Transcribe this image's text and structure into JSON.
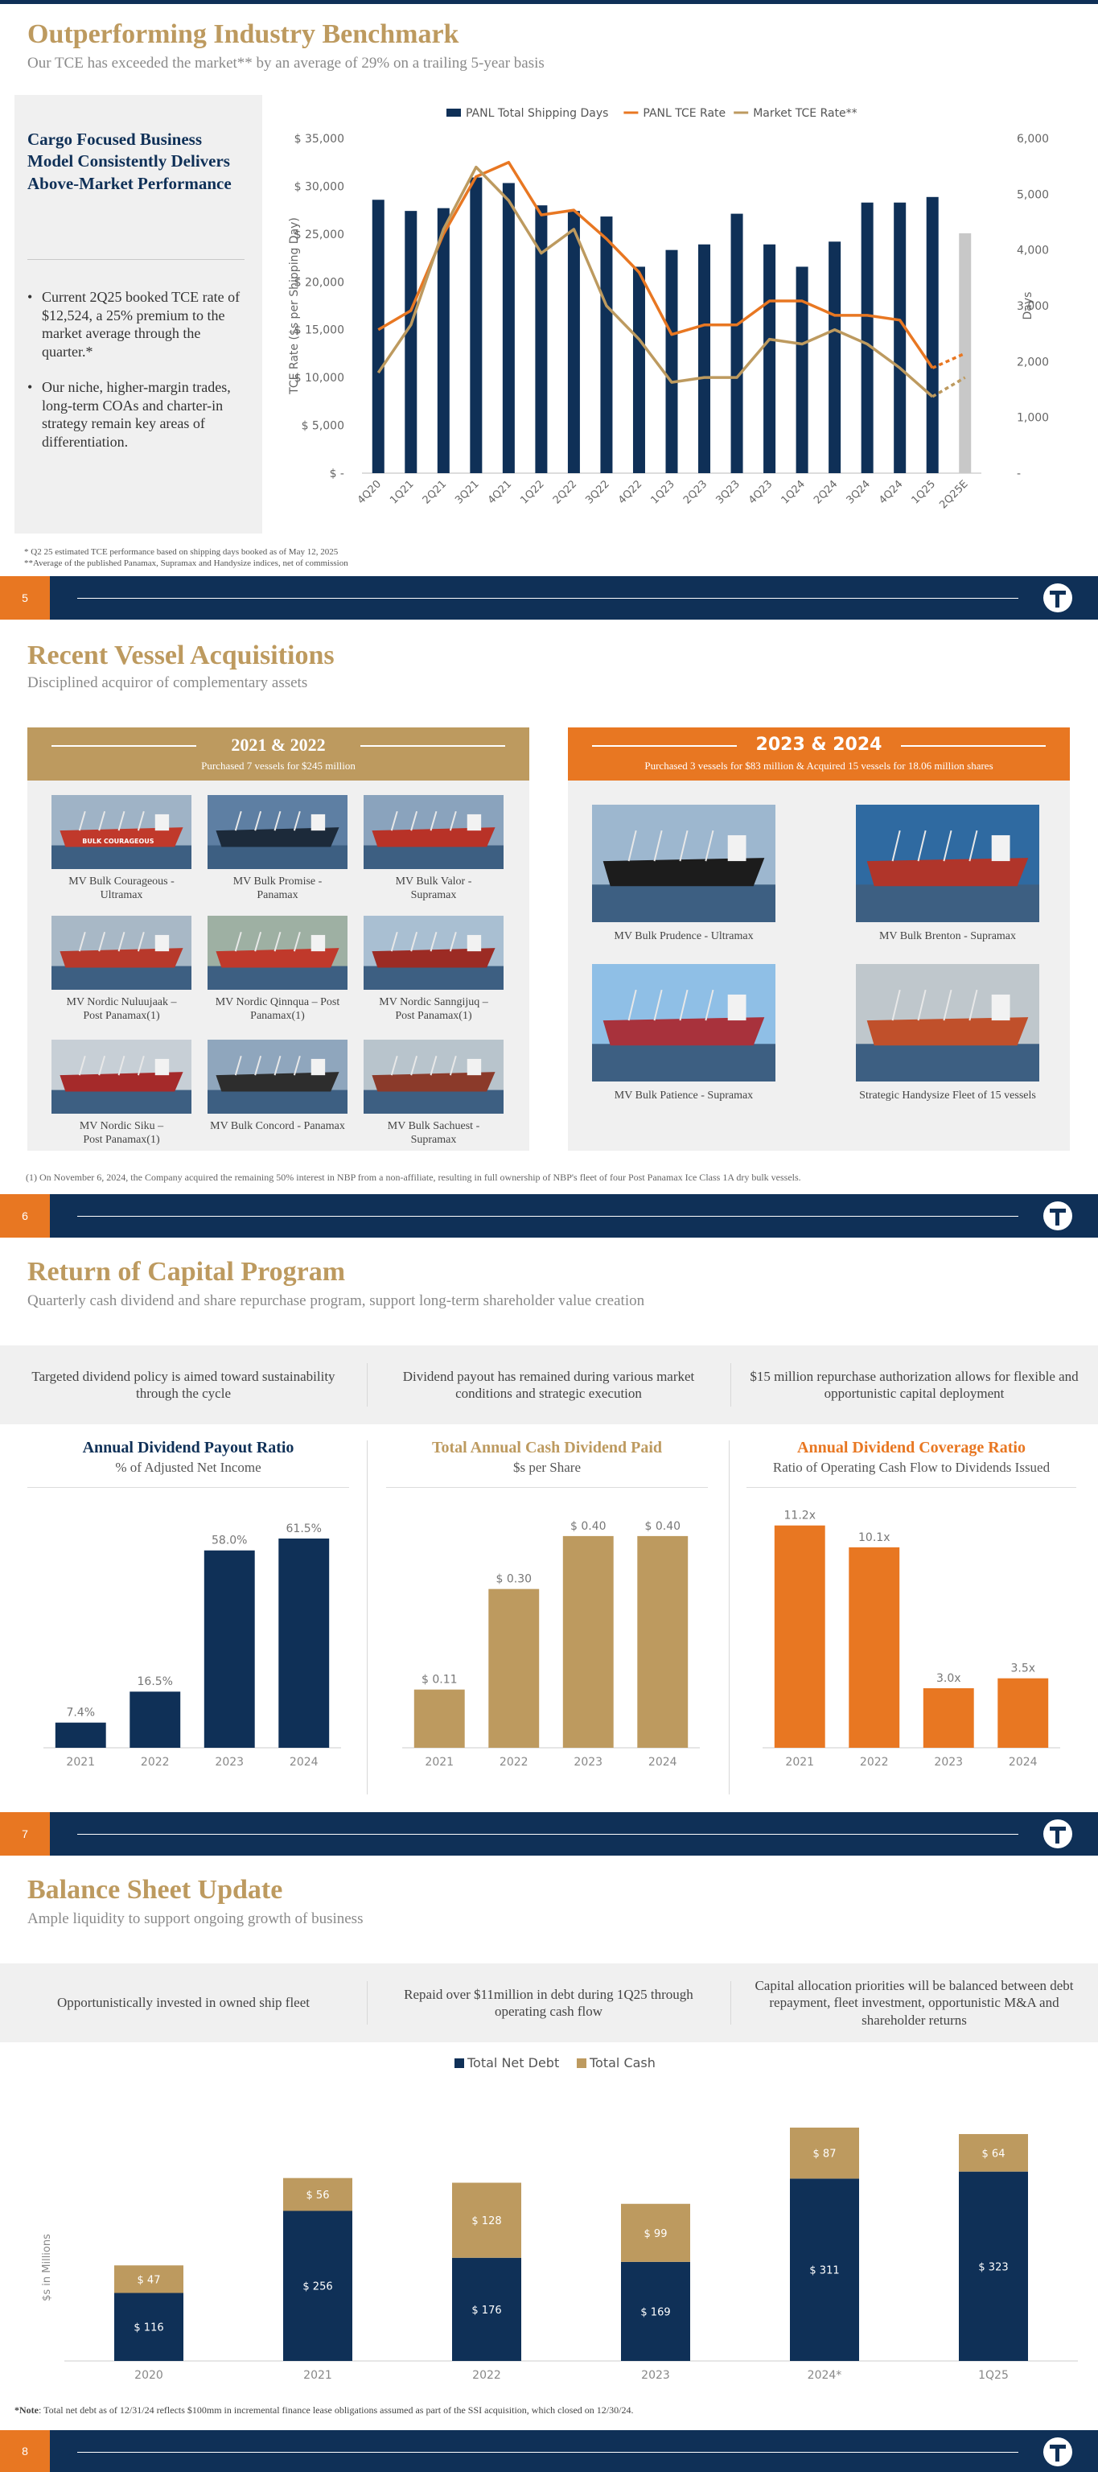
{
  "slide5": {
    "title": "Outperforming Industry Benchmark",
    "subtitle": "Our TCE has exceeded the market** by an average of 29% on a trailing 5-year basis",
    "sidebar_heading": "Cargo Focused Business Model Consistently Delivers Above-Market Performance",
    "bullets": [
      "Current 2Q25 booked TCE rate of $12,524, a 25% premium to the market average through the quarter.*",
      "Our niche, higher-margin trades, long-term COAs and charter-in strategy remain key areas of differentiation."
    ],
    "footnotes": [
      "* Q2 25 estimated TCE performance based on shipping days booked as of May 12, 2025",
      "**Average of the published Panamax, Supramax and Handysize indices, net of commission"
    ],
    "page_number": "5"
  },
  "chart_data": [
    {
      "type": "bar+line",
      "categories": [
        "4Q20",
        "1Q21",
        "2Q21",
        "3Q21",
        "4Q21",
        "1Q22",
        "2Q22",
        "3Q22",
        "4Q22",
        "1Q23",
        "2Q23",
        "3Q23",
        "4Q23",
        "1Q24",
        "2Q24",
        "3Q24",
        "4Q24",
        "1Q25",
        "2Q25E"
      ],
      "legend": [
        "PANL Total Shipping Days",
        "PANL TCE Rate",
        "Market TCE Rate**"
      ],
      "ylabel": "TCE Rate ($s per Shipping Day)",
      "y2label": "Days",
      "ylim": [
        0,
        35000
      ],
      "y2lim": [
        0,
        6000
      ],
      "yticks": [
        "$ -",
        "$ 5,000",
        "$ 10,000",
        "$ 15,000",
        "$ 20,000",
        "$ 25,000",
        "$ 30,000",
        "$ 35,000"
      ],
      "y2ticks": [
        "-",
        "1,000",
        "2,000",
        "3,000",
        "4,000",
        "5,000",
        "6,000"
      ],
      "series": [
        {
          "name": "PANL Total Shipping Days",
          "axis": "right",
          "values": [
            4900,
            4700,
            4750,
            5300,
            5200,
            4800,
            4700,
            4600,
            3700,
            4000,
            4100,
            4650,
            4100,
            3700,
            4150,
            4850,
            4850,
            4950,
            4300
          ]
        },
        {
          "name": "PANL TCE Rate",
          "axis": "left",
          "values": [
            15000,
            17000,
            25000,
            31000,
            32500,
            27000,
            27500,
            24500,
            21000,
            14500,
            15500,
            15500,
            18000,
            18000,
            16500,
            16500,
            16000,
            11000,
            12524
          ]
        },
        {
          "name": "Market TCE Rate**",
          "axis": "left",
          "values": [
            10500,
            15500,
            25500,
            32000,
            28500,
            23000,
            25500,
            17500,
            14000,
            9500,
            10000,
            10000,
            14000,
            13500,
            15000,
            13500,
            11000,
            8000,
            10000
          ]
        }
      ],
      "colors": {
        "days": "#0f3057",
        "days_estimate": "#c8c8c8",
        "panl": "#e87722",
        "market": "#bd9a5f"
      }
    },
    {
      "type": "bar",
      "title": "Annual Dividend Payout Ratio",
      "subtitle": "% of Adjusted Net Income",
      "categories": [
        "2021",
        "2022",
        "2023",
        "2024"
      ],
      "values": [
        7.4,
        16.5,
        58.0,
        61.5
      ],
      "labels": [
        "7.4%",
        "16.5%",
        "58.0%",
        "61.5%"
      ],
      "ylim": [
        0,
        70
      ],
      "color": "#0f3057"
    },
    {
      "type": "bar",
      "title": "Total Annual Cash Dividend Paid",
      "subtitle": "$s per Share",
      "categories": [
        "2021",
        "2022",
        "2023",
        "2024"
      ],
      "values": [
        0.11,
        0.3,
        0.4,
        0.4
      ],
      "labels": [
        "$ 0.11",
        "$ 0.30",
        "$ 0.40",
        "$ 0.40"
      ],
      "ylim": [
        0,
        0.45
      ],
      "color": "#bd9a5f"
    },
    {
      "type": "bar",
      "title": "Annual Dividend Coverage Ratio",
      "subtitle": "Ratio of Operating Cash Flow to Dividends Issued",
      "categories": [
        "2021",
        "2022",
        "2023",
        "2024"
      ],
      "values": [
        11.2,
        10.1,
        3.0,
        3.5
      ],
      "labels": [
        "11.2x",
        "10.1x",
        "3.0x",
        "3.5x"
      ],
      "ylim": [
        0,
        12
      ],
      "color": "#e87722"
    },
    {
      "type": "stacked-bar",
      "categories": [
        "2020",
        "2021",
        "2022",
        "2023",
        "2024*",
        "1Q25"
      ],
      "ylabel": "$s in Millions",
      "legend": [
        "Total Net Debt",
        "Total Cash"
      ],
      "series": [
        {
          "name": "Total Net Debt",
          "values": [
            116,
            256,
            176,
            169,
            311,
            323
          ],
          "labels": [
            "$ 116",
            "$ 256",
            "$ 176",
            "$ 169",
            "$ 311",
            "$ 323"
          ]
        },
        {
          "name": "Total Cash",
          "values": [
            47,
            56,
            128,
            99,
            87,
            64
          ],
          "labels": [
            "$ 47",
            "$ 56",
            "$ 128",
            "$ 99",
            "$ 87",
            "$ 64"
          ]
        }
      ],
      "ylim": [
        0,
        420
      ],
      "colors": {
        "debt": "#0f3057",
        "cash": "#bd9a5f"
      }
    }
  ],
  "slide6": {
    "title": "Recent Vessel Acquisitions",
    "subtitle": "Disciplined acquiror of complementary assets",
    "left_header": "2021 & 2022",
    "left_sub": "Purchased 7 vessels for $245 million",
    "right_header": "2023 & 2024",
    "right_sub": "Purchased 3 vessels for $83 million & Acquired 15 vessels for 18.06 million shares",
    "left_vessels": [
      {
        "l1": "MV Bulk Courageous -",
        "l2": "Ultramax"
      },
      {
        "l1": "MV Bulk Promise -",
        "l2": "Panamax"
      },
      {
        "l1": "MV Bulk Valor -",
        "l2": "Supramax"
      },
      {
        "l1": "MV Nordic Nuluujaak –",
        "l2": "Post Panamax(1)"
      },
      {
        "l1": "MV Nordic Qinnqua – Post",
        "l2": "Panamax(1)"
      },
      {
        "l1": "MV Nordic Sanngijuq –",
        "l2": "Post Panamax(1)"
      },
      {
        "l1": "MV Nordic Siku –",
        "l2": "Post Panamax(1)"
      },
      {
        "l1": "MV Bulk Concord - Panamax",
        "l2": ""
      },
      {
        "l1": "MV Bulk Sachuest -",
        "l2": "Supramax"
      }
    ],
    "right_vessels": [
      "MV Bulk Prudence - Ultramax",
      "MV Bulk Brenton - Supramax",
      "MV Bulk Patience - Supramax",
      "Strategic Handysize Fleet of 15 vessels"
    ],
    "ship_label": "BULK COURAGEOUS",
    "footnote": "(1) On November 6, 2024, the Company acquired the remaining 50% interest in NBP from a non-affiliate, resulting in full ownership of NBP's fleet of four Post Panamax Ice Class 1A dry bulk vessels.",
    "page_number": "6"
  },
  "slide7": {
    "title": "Return of Capital Program",
    "subtitle": "Quarterly cash dividend and share repurchase program, support long-term shareholder value creation",
    "points": [
      "Targeted dividend policy is aimed toward sustainability through the cycle",
      "Dividend payout has remained during various market conditions and strategic execution",
      "$15 million repurchase authorization allows for flexible and opportunistic capital deployment"
    ],
    "page_number": "7"
  },
  "slide8": {
    "title": "Balance Sheet Update",
    "subtitle": "Ample liquidity to support ongoing growth of business",
    "points": [
      "Opportunistically invested in owned ship fleet",
      "Repaid over $11million in debt during 1Q25 through operating cash flow",
      "Capital allocation priorities will be balanced between debt repayment, fleet investment, opportunistic M&A and shareholder returns"
    ],
    "note_label": "*Note",
    "note_text": ": Total net debt as of 12/31/24 reflects $100mm in incremental finance lease obligations assumed as part of the SSI acquisition, which closed on 12/30/24.",
    "page_number": "8"
  }
}
